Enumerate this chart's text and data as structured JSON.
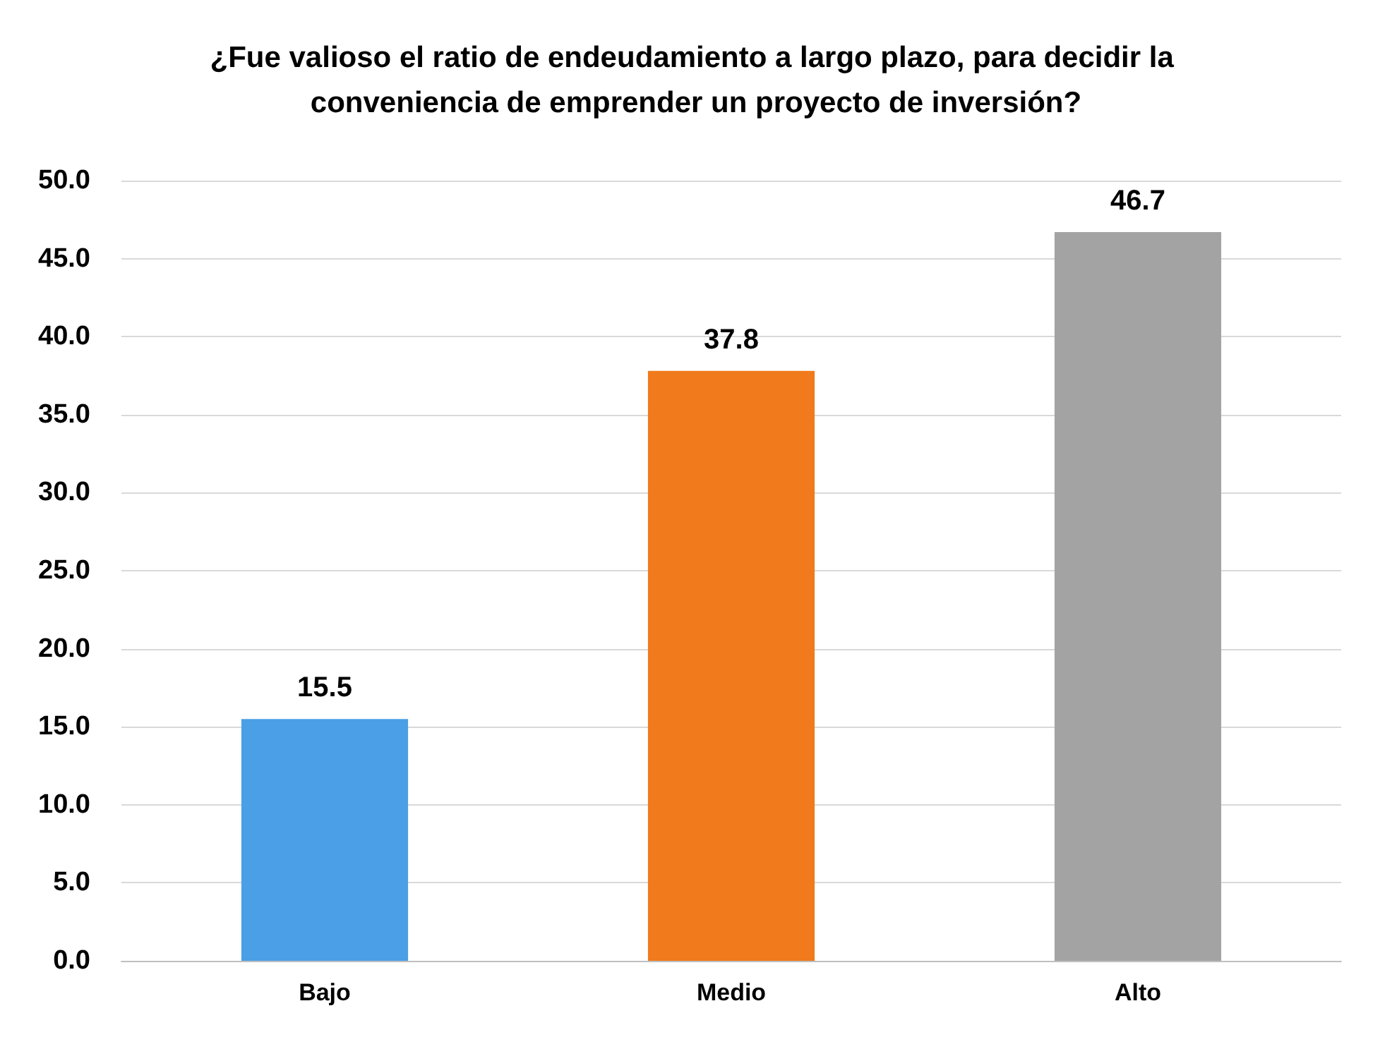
{
  "chart_data": {
    "type": "bar",
    "title": "¿Fue valioso el ratio de endeudamiento a largo plazo, para decidir la conveniencia de emprender un proyecto de inversión?",
    "categories": [
      "Bajo",
      "Medio",
      "Alto"
    ],
    "values": [
      15.5,
      37.8,
      46.7
    ],
    "colors": [
      "#4a9fe6",
      "#f07a1c",
      "#a3a3a3"
    ],
    "ylim": [
      0,
      50
    ],
    "yticks": [
      {
        "value": 0,
        "label": "0.0"
      },
      {
        "value": 5,
        "label": "5.0"
      },
      {
        "value": 10,
        "label": "10.0"
      },
      {
        "value": 15,
        "label": "15.0"
      },
      {
        "value": 20,
        "label": "20.0"
      },
      {
        "value": 25,
        "label": "25.0"
      },
      {
        "value": 30,
        "label": "30.0"
      },
      {
        "value": 35,
        "label": "35.0"
      },
      {
        "value": 40,
        "label": "40.0"
      },
      {
        "value": 45,
        "label": "45.0"
      },
      {
        "value": 50,
        "label": "50.0"
      }
    ],
    "grid": "y",
    "data_labels": true
  }
}
